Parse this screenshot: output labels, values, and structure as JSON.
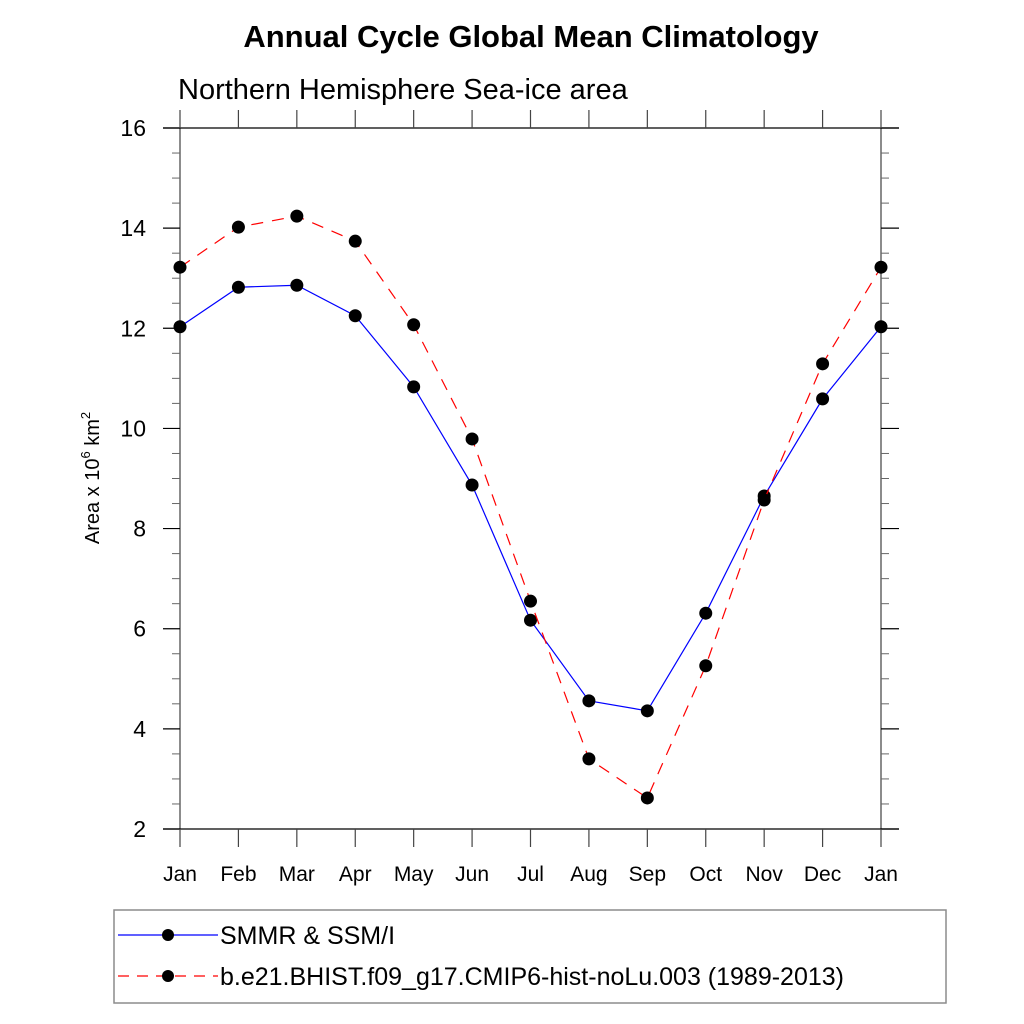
{
  "chart_data": {
    "type": "line",
    "title": "Annual Cycle Global Mean Climatology",
    "subtitle": "Northern Hemisphere Sea-ice area",
    "xlabel": "",
    "ylabel": {
      "base": "Area x 10",
      "exp1": "6",
      "unit": " km",
      "exp2": "2"
    },
    "ylim": [
      2,
      16
    ],
    "yticks": [
      2,
      4,
      6,
      8,
      10,
      12,
      14,
      16
    ],
    "yminor_step": 0.5,
    "categories": [
      "Jan",
      "Feb",
      "Mar",
      "Apr",
      "May",
      "Jun",
      "Jul",
      "Aug",
      "Sep",
      "Oct",
      "Nov",
      "Dec",
      "Jan"
    ],
    "grid": false,
    "legend_position": "bottom",
    "series": [
      {
        "name": "SMMR & SSM/I",
        "color": "#0000ff",
        "style": "solid",
        "marker": "filled-circle",
        "values": [
          12.03,
          12.82,
          12.86,
          12.25,
          10.83,
          8.87,
          6.17,
          4.56,
          4.36,
          6.31,
          8.65,
          10.59,
          12.03
        ]
      },
      {
        "name": "b.e21.BHIST.f09_g17.CMIP6-hist-noLu.003 (1989-2013)",
        "color": "#ff0000",
        "style": "dashed",
        "marker": "filled-circle",
        "values": [
          13.22,
          14.02,
          14.24,
          13.74,
          12.07,
          9.79,
          6.55,
          3.4,
          2.62,
          5.26,
          8.57,
          11.29,
          13.22
        ]
      }
    ]
  }
}
